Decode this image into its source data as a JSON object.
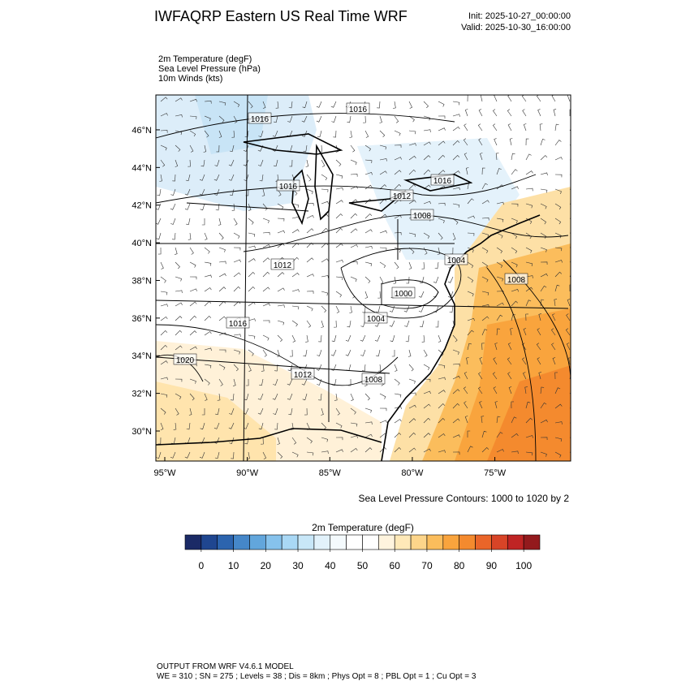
{
  "header": {
    "title": "IWFAQRP Eastern US Real Time WRF",
    "init": "Init: 2025-10-27_00:00:00",
    "valid": "Valid: 2025-10-30_16:00:00"
  },
  "fields": [
    "2m Temperature   (degF)",
    "Sea Level Pressure   (hPa)",
    "10m Winds   (kts)"
  ],
  "map": {
    "lat_ticks": [
      {
        "value": 30,
        "label": "30°N"
      },
      {
        "value": 32,
        "label": "32°N"
      },
      {
        "value": 34,
        "label": "34°N"
      },
      {
        "value": 36,
        "label": "36°N"
      },
      {
        "value": 38,
        "label": "38°N"
      },
      {
        "value": 40,
        "label": "40°N"
      },
      {
        "value": 42,
        "label": "42°N"
      },
      {
        "value": 44,
        "label": "44°N"
      },
      {
        "value": 46,
        "label": "46°N"
      }
    ],
    "lon_ticks": [
      {
        "value": -95,
        "label": "95°W"
      },
      {
        "value": -90,
        "label": "90°W"
      },
      {
        "value": -85,
        "label": "85°W"
      },
      {
        "value": -80,
        "label": "80°W"
      },
      {
        "value": -75,
        "label": "75°W"
      }
    ],
    "contour_labels": [
      "1016",
      "1016",
      "1016",
      "1016",
      "1012",
      "1008",
      "1012",
      "1004",
      "1008",
      "1000",
      "1016",
      "1004",
      "1020",
      "1012",
      "1008"
    ],
    "contour_note": "Sea Level Pressure Contours: 1000 to 1020 by 2"
  },
  "colorbar": {
    "title": "2m Temperature  (degF)",
    "ticks": [
      0,
      10,
      20,
      30,
      40,
      50,
      60,
      70,
      80,
      90,
      100
    ],
    "range": [
      -5,
      105
    ],
    "colors": [
      "#1b2a66",
      "#1f4690",
      "#2c64ae",
      "#4587c9",
      "#62a6dc",
      "#86c2ec",
      "#a9d8f5",
      "#c8e7f8",
      "#e2f2fb",
      "#f4fafd",
      "#ffffff",
      "#ffffff",
      "#fff4de",
      "#ffe9b8",
      "#fdd58a",
      "#fbbd5c",
      "#f9a43d",
      "#f48a2e",
      "#ea6529",
      "#d84427",
      "#bf2424",
      "#931a1d"
    ]
  },
  "footer": [
    "OUTPUT FROM WRF V4.6.1 MODEL",
    "WE = 310 ; SN = 275 ; Levels = 38 ; Dis = 8km ; Phys Opt = 8 ; PBL Opt = 1 ; Cu Opt = 3"
  ]
}
